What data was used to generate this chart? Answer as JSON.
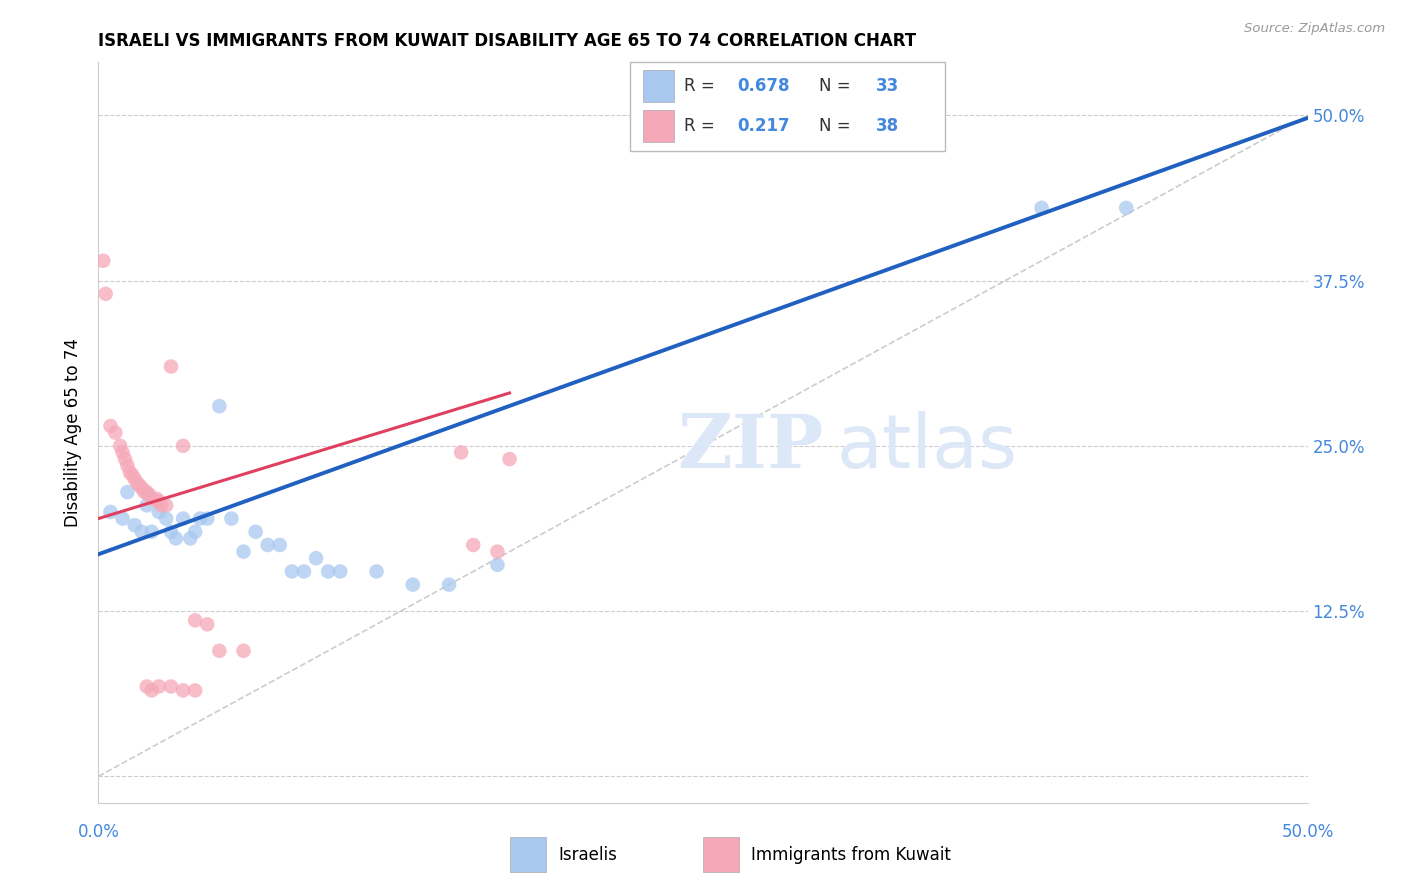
{
  "title": "ISRAELI VS IMMIGRANTS FROM KUWAIT DISABILITY AGE 65 TO 74 CORRELATION CHART",
  "source": "Source: ZipAtlas.com",
  "ylabel": "Disability Age 65 to 74",
  "xlim": [
    0,
    0.5
  ],
  "ylim": [
    -0.02,
    0.54
  ],
  "ytick_vals": [
    0.0,
    0.125,
    0.25,
    0.375,
    0.5
  ],
  "xtick_vals": [
    0.0,
    0.1,
    0.2,
    0.3,
    0.4,
    0.5
  ],
  "blue_R": 0.678,
  "blue_N": 33,
  "pink_R": 0.217,
  "pink_N": 38,
  "blue_line": [
    0.0,
    0.168,
    0.5,
    0.498
  ],
  "pink_line": [
    0.0,
    0.195,
    0.17,
    0.29
  ],
  "diag_line": [
    0.0,
    0.0,
    0.5,
    0.5
  ],
  "blue_scatter": [
    [
      0.005,
      0.2
    ],
    [
      0.01,
      0.195
    ],
    [
      0.012,
      0.215
    ],
    [
      0.015,
      0.19
    ],
    [
      0.018,
      0.185
    ],
    [
      0.02,
      0.205
    ],
    [
      0.022,
      0.185
    ],
    [
      0.025,
      0.2
    ],
    [
      0.028,
      0.195
    ],
    [
      0.03,
      0.185
    ],
    [
      0.032,
      0.18
    ],
    [
      0.035,
      0.195
    ],
    [
      0.038,
      0.18
    ],
    [
      0.04,
      0.185
    ],
    [
      0.042,
      0.195
    ],
    [
      0.045,
      0.195
    ],
    [
      0.05,
      0.28
    ],
    [
      0.055,
      0.195
    ],
    [
      0.06,
      0.17
    ],
    [
      0.065,
      0.185
    ],
    [
      0.07,
      0.175
    ],
    [
      0.075,
      0.175
    ],
    [
      0.08,
      0.155
    ],
    [
      0.085,
      0.155
    ],
    [
      0.09,
      0.165
    ],
    [
      0.095,
      0.155
    ],
    [
      0.1,
      0.155
    ],
    [
      0.115,
      0.155
    ],
    [
      0.13,
      0.145
    ],
    [
      0.145,
      0.145
    ],
    [
      0.165,
      0.16
    ],
    [
      0.39,
      0.43
    ],
    [
      0.425,
      0.43
    ]
  ],
  "pink_scatter": [
    [
      0.002,
      0.39
    ],
    [
      0.003,
      0.365
    ],
    [
      0.005,
      0.265
    ],
    [
      0.007,
      0.26
    ],
    [
      0.009,
      0.25
    ],
    [
      0.01,
      0.245
    ],
    [
      0.011,
      0.24
    ],
    [
      0.012,
      0.235
    ],
    [
      0.013,
      0.23
    ],
    [
      0.014,
      0.228
    ],
    [
      0.015,
      0.225
    ],
    [
      0.016,
      0.222
    ],
    [
      0.017,
      0.22
    ],
    [
      0.018,
      0.218
    ],
    [
      0.019,
      0.215
    ],
    [
      0.02,
      0.215
    ],
    [
      0.021,
      0.213
    ],
    [
      0.022,
      0.21
    ],
    [
      0.024,
      0.21
    ],
    [
      0.025,
      0.208
    ],
    [
      0.026,
      0.205
    ],
    [
      0.028,
      0.205
    ],
    [
      0.03,
      0.31
    ],
    [
      0.035,
      0.25
    ],
    [
      0.04,
      0.118
    ],
    [
      0.045,
      0.115
    ],
    [
      0.05,
      0.095
    ],
    [
      0.06,
      0.095
    ],
    [
      0.02,
      0.068
    ],
    [
      0.022,
      0.065
    ],
    [
      0.15,
      0.245
    ],
    [
      0.17,
      0.24
    ],
    [
      0.155,
      0.175
    ],
    [
      0.165,
      0.17
    ],
    [
      0.025,
      0.068
    ],
    [
      0.03,
      0.068
    ],
    [
      0.035,
      0.065
    ],
    [
      0.04,
      0.065
    ]
  ],
  "blue_color": "#a8c8f0",
  "pink_color": "#f5a8b8",
  "blue_line_color": "#2060c0",
  "pink_line_color": "#e04060",
  "diag_color": "#cccccc",
  "watermark_color": "#dce8f8",
  "grid_color": "#cccccc",
  "right_label_color": "#4488dd",
  "bottom_label_color": "#4488dd"
}
